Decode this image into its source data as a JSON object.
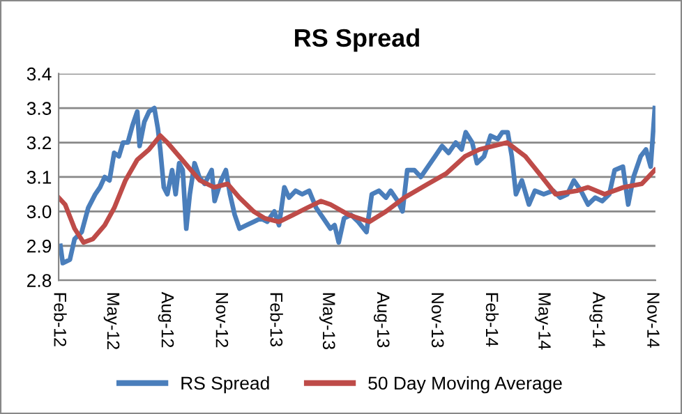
{
  "chart_data": {
    "type": "line",
    "title": "RS Spread",
    "xlim": [
      "2012-02-01",
      "2014-11-07"
    ],
    "xticks": [
      {
        "value": "2012-02-01",
        "label": "Feb-12"
      },
      {
        "value": "2012-05-01",
        "label": "May-12"
      },
      {
        "value": "2012-08-01",
        "label": "Aug-12"
      },
      {
        "value": "2012-11-01",
        "label": "Nov-12"
      },
      {
        "value": "2013-02-01",
        "label": "Feb-13"
      },
      {
        "value": "2013-05-01",
        "label": "May-13"
      },
      {
        "value": "2013-08-01",
        "label": "Aug-13"
      },
      {
        "value": "2013-11-01",
        "label": "Nov-13"
      },
      {
        "value": "2014-02-01",
        "label": "Feb-14"
      },
      {
        "value": "2014-05-01",
        "label": "May-14"
      },
      {
        "value": "2014-08-01",
        "label": "Aug-14"
      },
      {
        "value": "2014-11-01",
        "label": "Nov-14"
      }
    ],
    "ylim": [
      2.8,
      3.4
    ],
    "yticks": [
      2.8,
      2.9,
      {
        "value": 3.0,
        "label": "3.0"
      },
      3.1,
      3.2,
      3.3,
      3.4
    ],
    "grid": "y",
    "legend": "bottom",
    "marker": "none",
    "line_style": "solid",
    "series": [
      {
        "name": "RS Spread",
        "color": "#4a7ebb",
        "x": [
          "2012-02-04",
          "2012-02-08",
          "2012-02-20",
          "2012-02-28",
          "2012-03-11",
          "2012-03-22",
          "2012-04-03",
          "2012-04-11",
          "2012-04-19",
          "2012-04-27",
          "2012-05-05",
          "2012-05-13",
          "2012-05-20",
          "2012-05-28",
          "2012-06-05",
          "2012-06-13",
          "2012-06-17",
          "2012-06-25",
          "2012-07-03",
          "2012-07-12",
          "2012-07-18",
          "2012-07-22",
          "2012-07-28",
          "2012-08-03",
          "2012-08-11",
          "2012-08-17",
          "2012-08-23",
          "2012-08-29",
          "2012-09-04",
          "2012-09-10",
          "2012-09-18",
          "2012-09-26",
          "2012-10-05",
          "2012-10-17",
          "2012-10-22",
          "2012-11-02",
          "2012-11-10",
          "2012-11-17",
          "2012-11-25",
          "2012-12-03",
          "2012-12-15",
          "2012-12-27",
          "2013-01-08",
          "2013-01-19",
          "2013-01-31",
          "2013-02-08",
          "2013-02-17",
          "2013-02-25",
          "2013-03-08",
          "2013-03-19",
          "2013-03-31",
          "2013-04-12",
          "2013-04-24",
          "2013-05-06",
          "2013-05-13",
          "2013-05-20",
          "2013-05-29",
          "2013-06-10",
          "2013-06-22",
          "2013-07-06",
          "2013-07-15",
          "2013-07-27",
          "2013-08-08",
          "2013-08-16",
          "2013-08-28",
          "2013-09-05",
          "2013-09-13",
          "2013-09-25",
          "2013-10-06",
          "2013-10-18",
          "2013-10-30",
          "2013-11-11",
          "2013-11-22",
          "2013-12-04",
          "2013-12-14",
          "2013-12-21",
          "2014-01-01",
          "2014-01-09",
          "2014-01-21",
          "2014-02-01",
          "2014-02-13",
          "2014-02-21",
          "2014-03-02",
          "2014-03-09",
          "2014-03-16",
          "2014-03-26",
          "2014-04-07",
          "2014-04-17",
          "2014-05-02",
          "2014-05-18",
          "2014-05-30",
          "2014-06-11",
          "2014-06-22",
          "2014-07-04",
          "2014-07-16",
          "2014-07-28",
          "2014-08-09",
          "2014-08-21",
          "2014-08-30",
          "2014-09-13",
          "2014-09-22",
          "2014-10-01",
          "2014-10-13",
          "2014-10-22",
          "2014-10-30",
          "2014-11-06"
        ],
        "values": [
          2.9,
          2.85,
          2.86,
          2.92,
          2.94,
          3.01,
          3.05,
          3.07,
          3.1,
          3.09,
          3.17,
          3.16,
          3.2,
          3.2,
          3.25,
          3.29,
          3.19,
          3.26,
          3.29,
          3.3,
          3.24,
          3.18,
          3.07,
          3.05,
          3.12,
          3.05,
          3.14,
          3.12,
          2.95,
          3.05,
          3.14,
          3.1,
          3.08,
          3.12,
          3.03,
          3.09,
          3.12,
          3.05,
          2.99,
          2.95,
          2.96,
          2.97,
          2.98,
          2.97,
          3.0,
          2.96,
          3.07,
          3.04,
          3.06,
          3.05,
          3.06,
          3.01,
          2.98,
          2.95,
          2.96,
          2.91,
          2.98,
          2.99,
          2.97,
          2.94,
          3.05,
          3.06,
          3.04,
          3.06,
          3.03,
          3.0,
          3.12,
          3.12,
          3.1,
          3.13,
          3.16,
          3.19,
          3.17,
          3.2,
          3.18,
          3.23,
          3.2,
          3.14,
          3.16,
          3.22,
          3.21,
          3.23,
          3.23,
          3.16,
          3.05,
          3.09,
          3.02,
          3.06,
          3.05,
          3.06,
          3.04,
          3.05,
          3.09,
          3.06,
          3.02,
          3.04,
          3.03,
          3.05,
          3.12,
          3.13,
          3.02,
          3.1,
          3.16,
          3.18,
          3.13,
          3.3
        ]
      },
      {
        "name": "50 Day Moving Average",
        "color": "#be4b48",
        "x": [
          "2012-02-01",
          "2012-02-12",
          "2012-02-28",
          "2012-03-14",
          "2012-03-30",
          "2012-04-19",
          "2012-05-05",
          "2012-05-24",
          "2012-06-13",
          "2012-07-03",
          "2012-07-22",
          "2012-08-03",
          "2012-08-23",
          "2012-09-12",
          "2012-09-27",
          "2012-10-21",
          "2012-11-13",
          "2012-12-03",
          "2012-12-27",
          "2013-01-15",
          "2013-02-08",
          "2013-03-04",
          "2013-03-27",
          "2013-04-20",
          "2013-05-06",
          "2013-06-06",
          "2013-07-11",
          "2013-08-08",
          "2013-09-08",
          "2013-10-18",
          "2013-11-18",
          "2013-12-20",
          "2014-01-13",
          "2014-03-01",
          "2014-04-01",
          "2014-04-29",
          "2014-05-22",
          "2014-06-27",
          "2014-07-16",
          "2014-08-13",
          "2014-09-14",
          "2014-10-15",
          "2014-11-06"
        ],
        "values": [
          3.04,
          3.02,
          2.95,
          2.91,
          2.92,
          2.96,
          3.01,
          3.09,
          3.15,
          3.18,
          3.22,
          3.2,
          3.16,
          3.12,
          3.09,
          3.07,
          3.08,
          3.04,
          3.0,
          2.98,
          2.97,
          2.99,
          3.01,
          3.03,
          3.02,
          2.99,
          2.97,
          3.0,
          3.04,
          3.08,
          3.11,
          3.16,
          3.18,
          3.2,
          3.16,
          3.1,
          3.05,
          3.06,
          3.07,
          3.05,
          3.07,
          3.08,
          3.12
        ]
      }
    ]
  }
}
